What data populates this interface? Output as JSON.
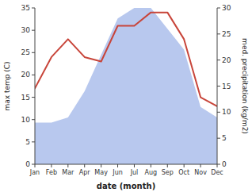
{
  "chart_data": {
    "type": "line",
    "categories": [
      "Jan",
      "Feb",
      "Mar",
      "Apr",
      "May",
      "Jun",
      "Jul",
      "Aug",
      "Sep",
      "Oct",
      "Nov",
      "Dec"
    ],
    "series": [
      {
        "type": "area",
        "color": "#b8c8ee",
        "axis": "y2",
        "values": [
          8,
          8,
          9,
          14,
          21,
          28,
          30,
          30,
          26,
          22,
          11,
          9
        ]
      },
      {
        "type": "line",
        "color": "#c8453a",
        "values": [
          17,
          24,
          28,
          24,
          23,
          31,
          31,
          34,
          34,
          28,
          15,
          13
        ]
      }
    ],
    "xlabel": "date (month)",
    "ylabel": "max temp (C)",
    "y2label": "med. precipitation (kg/m2)",
    "ylim": [
      0,
      35
    ],
    "yticks": [
      0,
      5,
      10,
      15,
      20,
      25,
      30,
      35
    ],
    "y2lim": [
      0,
      30
    ],
    "y2ticks": [
      0,
      5,
      10,
      15,
      20,
      25,
      30
    ],
    "grid": false
  }
}
